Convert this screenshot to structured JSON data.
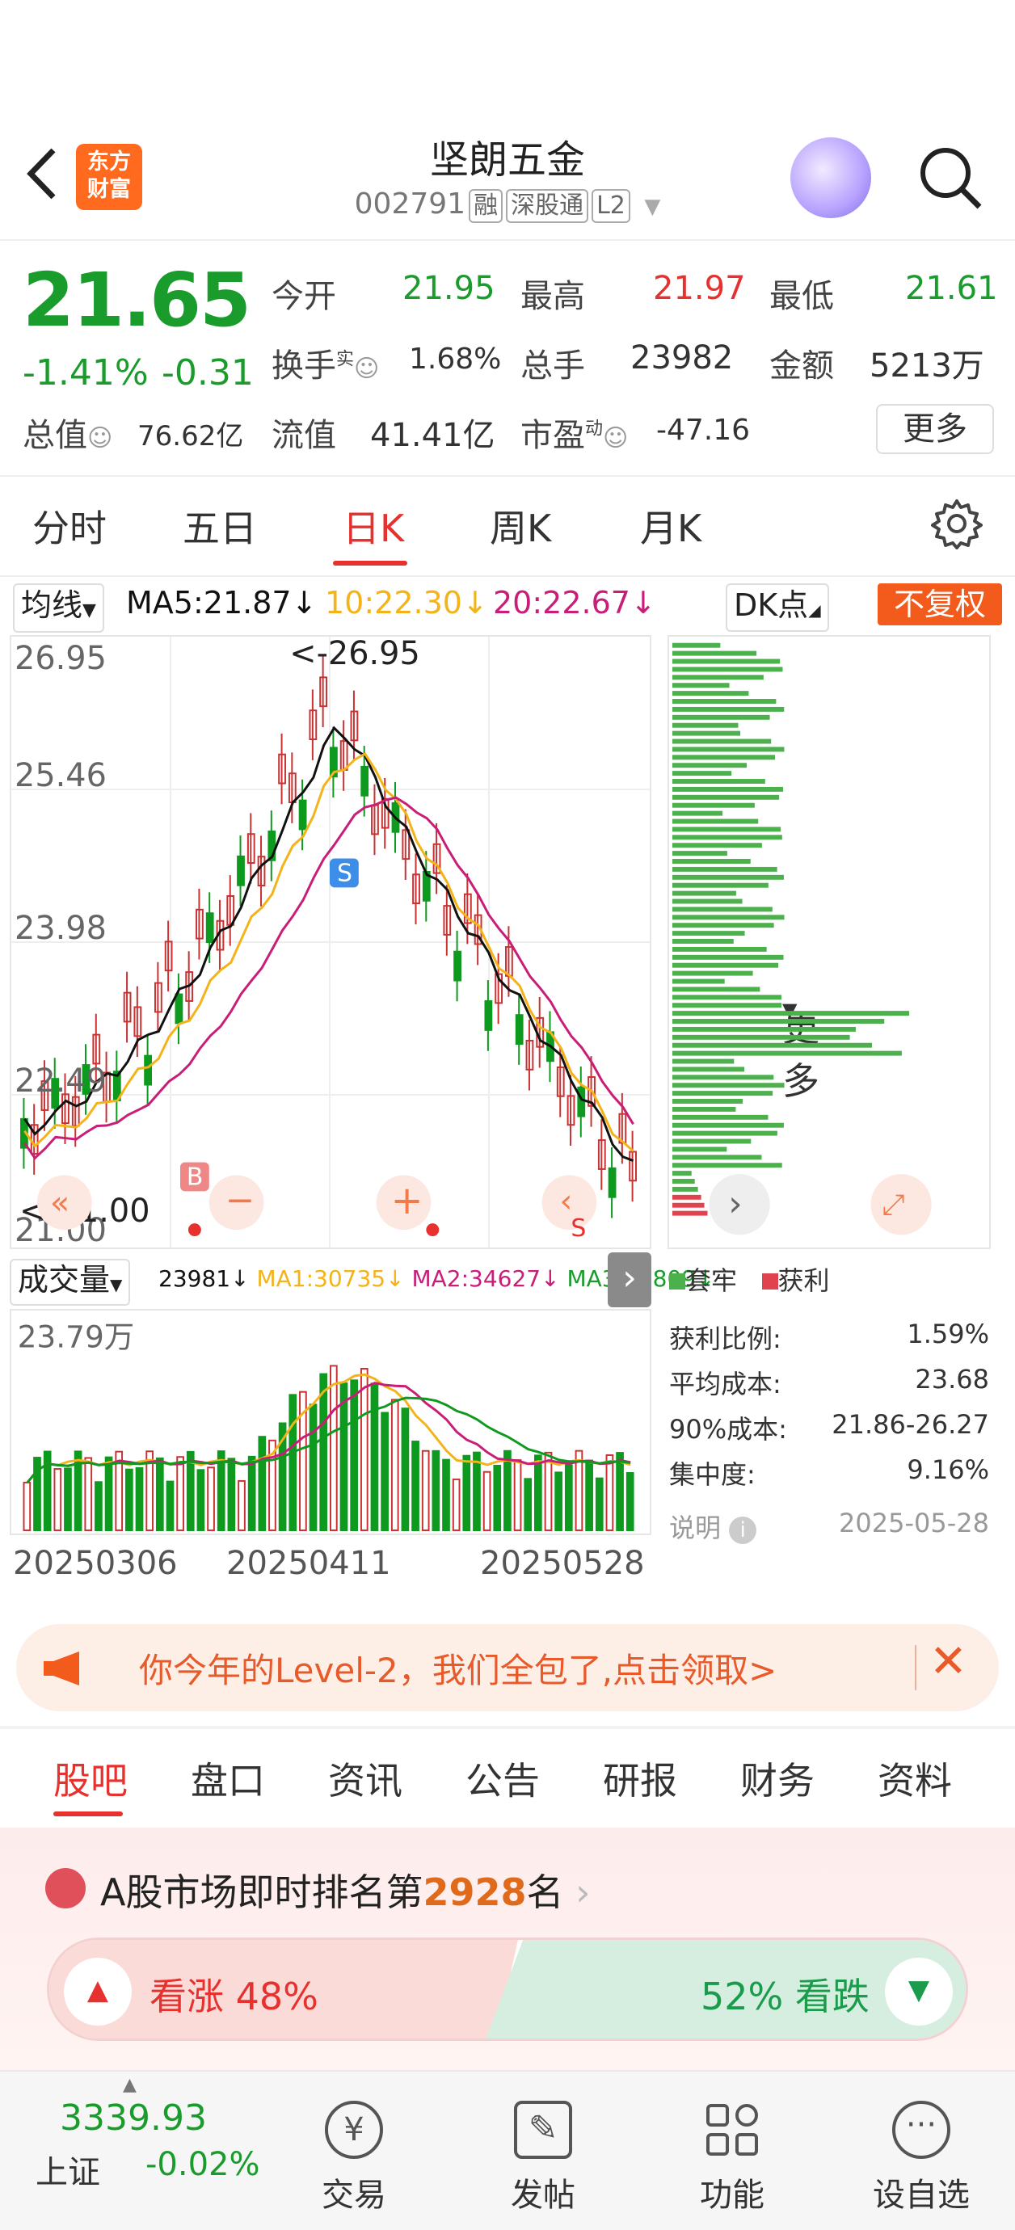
{
  "header": {
    "title": "坚朗五金",
    "code": "002791",
    "tags": [
      "融",
      "深股通",
      "L2"
    ],
    "logo": "东方\n财富",
    "logo_line1": "东方",
    "logo_line2": "财富"
  },
  "quote": {
    "price": "21.65",
    "change_pct": "-1.41%",
    "change": "-0.31",
    "open_label": "今开",
    "open": "21.95",
    "high_label": "最高",
    "high": "21.97",
    "low_label": "最低",
    "low": "21.61",
    "turnover_label": "换手",
    "turnover_sup": "实",
    "turnover": "1.68%",
    "volume_label": "总手",
    "volume": "23982",
    "amount_label": "金额",
    "amount": "5213万",
    "mktcap_label": "总值",
    "mktcap": "76.62亿",
    "float_label": "流值",
    "float": "41.41亿",
    "pe_label": "市盈",
    "pe_sup": "动",
    "pe": "-47.16",
    "more": "更多"
  },
  "tabs": [
    "分时",
    "五日",
    "日K",
    "周K",
    "月K",
    "更多"
  ],
  "kline": {
    "ma_selector": "均线",
    "ma5": "MA5:21.87",
    "ma10": "10:22.30",
    "ma20": "20:22.67",
    "dk_button": "DK点",
    "fq_button": "不复权",
    "y_labels": [
      "26.95",
      "25.46",
      "23.98",
      "22.49",
      "21.00"
    ],
    "max_label": "<-26.95",
    "min_label": "<-21.00",
    "vol_selector": "成交量",
    "vol_val": "23981",
    "vol_ma1": "MA1:30735",
    "vol_ma2": "MA2:34627",
    "vol_ma3": "MA3:47809",
    "vol_max": "23.79万",
    "dates": [
      "20250306",
      "20250411",
      "20250528"
    ],
    "colors": {
      "up": "#c83232",
      "down": "#0d9a1e",
      "ma5": "#111111",
      "ma10": "#f3b319",
      "ma20": "#c81e78"
    },
    "markers": {
      "buy": "B",
      "sell": "S"
    }
  },
  "chart_data": {
    "type": "candlestick",
    "ylim": [
      21.0,
      26.95
    ],
    "x_ticks": [
      "20250306",
      "20250411",
      "20250528"
    ],
    "volume_max": "23.79万"
  },
  "chips": {
    "legend_trapped": "套牢",
    "legend_profit": "获利",
    "rows": [
      {
        "k": "获利比例:",
        "v": "1.59%"
      },
      {
        "k": "平均成本:",
        "v": "23.68"
      },
      {
        "k": "90%成本:",
        "v": "21.86-26.27"
      },
      {
        "k": "集中度:",
        "v": "9.16%"
      }
    ],
    "note": "说明",
    "date": "2025-05-28"
  },
  "banner": {
    "text": "你今年的Level-2，我们全包了,点击领取>"
  },
  "subtabs": [
    "股吧",
    "盘口",
    "资讯",
    "公告",
    "研报",
    "财务",
    "资料"
  ],
  "rank": {
    "prefix": "A股市场即时排名第",
    "num": "2928",
    "suffix": "名",
    "up": "看涨 48%",
    "down": "52% 看跌"
  },
  "bottom": {
    "index_val": "3339.93",
    "index_name": "上证",
    "index_chg": "-0.02%",
    "items": [
      "交易",
      "发帖",
      "功能",
      "设自选"
    ]
  }
}
